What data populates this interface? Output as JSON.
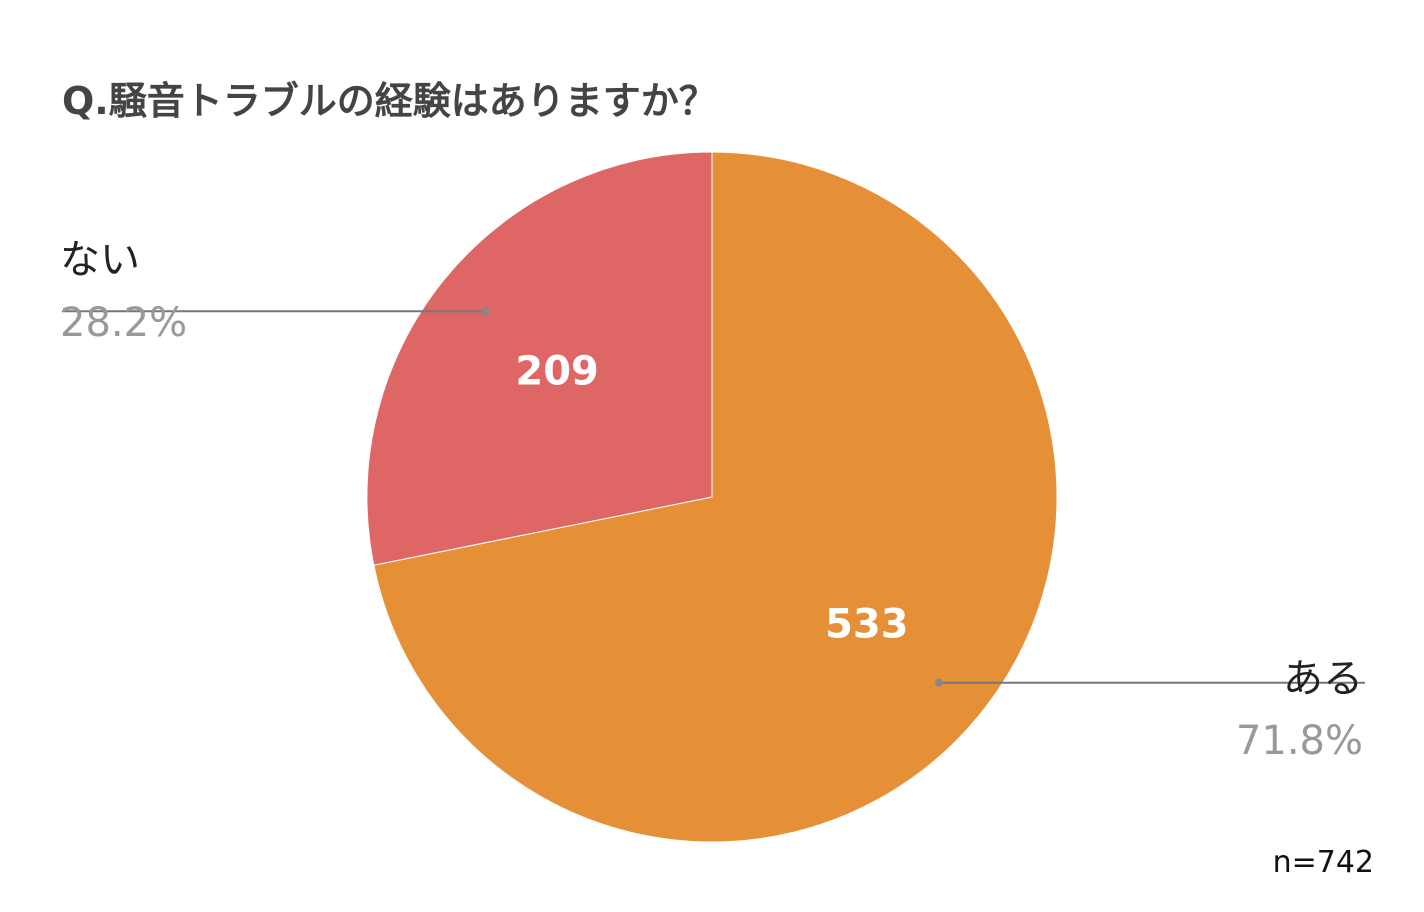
{
  "chart_data": {
    "type": "pie",
    "title": "Q.騒音トラブルの経験はありますか？",
    "note": "n=742",
    "slices": [
      {
        "label": "ある",
        "value": 533,
        "percent_label": "71.8%",
        "color": "#E58F37"
      },
      {
        "label": "ない",
        "value": 209,
        "percent_label": "28.2%",
        "color": "#DE6664"
      }
    ],
    "start_angle_deg": 0,
    "direction": "clockwise",
    "legend_placement": "outside-labels"
  }
}
